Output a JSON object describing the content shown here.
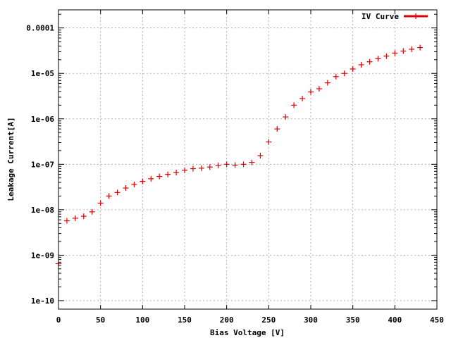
{
  "chart_data": {
    "type": "scatter",
    "xlabel": "Bias Voltage [V]",
    "ylabel": "Leakage Current[A]",
    "xlim": [
      0,
      450
    ],
    "ylim": [
      6.5e-11,
      0.00025
    ],
    "y_scale": "log",
    "grid": true,
    "legend_position": "top-right",
    "x_ticks": [
      {
        "value": 0,
        "label": "0"
      },
      {
        "value": 50,
        "label": "50"
      },
      {
        "value": 100,
        "label": "100"
      },
      {
        "value": 150,
        "label": "150"
      },
      {
        "value": 200,
        "label": "200"
      },
      {
        "value": 250,
        "label": "250"
      },
      {
        "value": 300,
        "label": "300"
      },
      {
        "value": 350,
        "label": "350"
      },
      {
        "value": 400,
        "label": "400"
      },
      {
        "value": 450,
        "label": "450"
      }
    ],
    "y_ticks": [
      {
        "value": 1e-10,
        "label": "1e-10"
      },
      {
        "value": 1e-09,
        "label": "1e-09"
      },
      {
        "value": 1e-08,
        "label": "1e-08"
      },
      {
        "value": 1e-07,
        "label": "1e-07"
      },
      {
        "value": 1e-06,
        "label": "1e-06"
      },
      {
        "value": 1e-05,
        "label": "1e-05"
      },
      {
        "value": 0.0001,
        "label": "0.0001"
      }
    ],
    "series": [
      {
        "name": "IV Curve",
        "color": "#e00000",
        "marker": "plus",
        "x": [
          0,
          10,
          20,
          30,
          40,
          50,
          60,
          70,
          80,
          90,
          100,
          110,
          120,
          130,
          140,
          150,
          160,
          170,
          180,
          190,
          200,
          210,
          220,
          230,
          240,
          250,
          260,
          270,
          280,
          290,
          300,
          310,
          320,
          330,
          340,
          350,
          360,
          370,
          380,
          390,
          400,
          410,
          420,
          430
        ],
        "y": [
          6.5e-10,
          5.7e-09,
          6.5e-09,
          7.2e-09,
          9e-09,
          1.4e-08,
          2e-08,
          2.4e-08,
          3e-08,
          3.6e-08,
          4.2e-08,
          4.8e-08,
          5.4e-08,
          6e-08,
          6.6e-08,
          7.4e-08,
          8e-08,
          8.2e-08,
          8.7e-08,
          9.4e-08,
          1e-07,
          9.6e-08,
          1e-07,
          1.1e-07,
          1.55e-07,
          3.1e-07,
          6e-07,
          1.1e-06,
          2e-06,
          2.8e-06,
          3.9e-06,
          4.6e-06,
          6.2e-06,
          8.5e-06,
          1e-05,
          1.25e-05,
          1.55e-05,
          1.8e-05,
          2.1e-05,
          2.4e-05,
          2.8e-05,
          3.1e-05,
          3.4e-05,
          3.7e-05
        ]
      }
    ]
  }
}
